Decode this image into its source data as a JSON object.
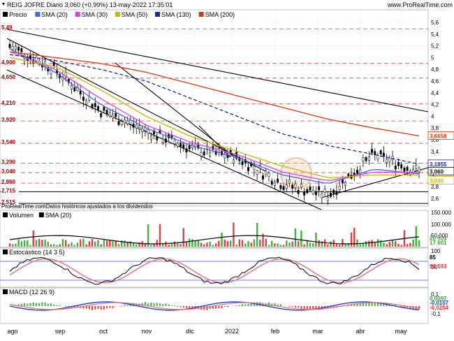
{
  "header": {
    "title": "REIG JOFRE Diario 3,060 (+0,99%) 13-may-2022 17:35:01",
    "brand": "www.ProRealTime.com"
  },
  "price_panel": {
    "legend": [
      {
        "label": "Precio",
        "color": "#000000"
      },
      {
        "label": "SMA (20)",
        "color": "#3a6fe0"
      },
      {
        "label": "SMA (30)",
        "color": "#e040e0"
      },
      {
        "label": "SMA (50)",
        "color": "#c8b800"
      },
      {
        "label": "SMA (130)",
        "color": "#1a2a90"
      },
      {
        "label": "SMA (200)",
        "color": "#d03a10"
      }
    ],
    "level_labels": [
      "5,49",
      "4,900",
      "4,650",
      "4,210",
      "3,920",
      "3,540",
      "3,200",
      "3,040",
      "2,860",
      "2,715",
      "2,515"
    ],
    "axis_ticks": [
      "5,6",
      "5,4",
      "5,2",
      "5",
      "4,8",
      "4,6",
      "4,4",
      "4,2",
      "4",
      "3,8",
      "3,6",
      "3,4",
      "3,2",
      "3",
      "2,8",
      "2,6"
    ],
    "tags": [
      {
        "text": "3,6658",
        "color": "#d03a10"
      },
      {
        "text": "3,1855",
        "color": "#1a2a90"
      },
      {
        "text": "3,060",
        "color": "#000000"
      },
      {
        "text": "3,000",
        "color": "#c8b800"
      }
    ],
    "footnote": "ProRealTime.comDatos históricos ajustados a los dividendos"
  },
  "volume_panel": {
    "legend": [
      {
        "label": "Volumen",
        "color": "#000000"
      },
      {
        "label": "SMA (20)",
        "color": "#000000"
      }
    ],
    "axis_ticks": [
      "150 000",
      "100 000",
      "50 000"
    ],
    "tags": [
      "20 631",
      "17 601"
    ]
  },
  "stoch_panel": {
    "legend": [
      {
        "label": "Estocástico (14 3 5)",
        "color": "#000000"
      }
    ],
    "axis_ticks": [
      "100",
      "50"
    ],
    "tags": [
      "85",
      "56,593"
    ]
  },
  "macd_panel": {
    "legend": [
      {
        "label": "MACD (12 26 9)",
        "color": "#000000"
      }
    ],
    "axis_ticks": [
      "0,1",
      "-0,1"
    ],
    "tags": [
      "0,0097",
      "-0,0107",
      "-0,0204"
    ]
  },
  "x_axis": [
    "ago",
    "sep",
    "oct",
    "nov",
    "dic",
    "2022",
    "feb",
    "mar",
    "abr",
    "may"
  ],
  "chart_data": {
    "type": "line",
    "title": "REIG JOFRE Diario 3,060 (+0,99%) 13-may-2022 17:35:01",
    "x": [
      "ago",
      "sep",
      "oct",
      "nov",
      "dic",
      "2022",
      "feb",
      "mar",
      "abr",
      "may"
    ],
    "ylim": [
      2.55,
      5.65
    ],
    "horizontal_levels": [
      5.49,
      4.9,
      4.65,
      4.21,
      3.92,
      3.54,
      3.2,
      3.04,
      2.86,
      2.715,
      2.515
    ],
    "series": [
      {
        "name": "Precio",
        "values": [
          5.2,
          4.8,
          4.1,
          3.75,
          3.45,
          3.3,
          2.85,
          2.65,
          3.35,
          3.06
        ]
      },
      {
        "name": "SMA (20)",
        "values": [
          5.15,
          4.75,
          4.2,
          3.8,
          3.5,
          3.3,
          3.0,
          2.85,
          3.1,
          3.02
        ]
      },
      {
        "name": "SMA (30)",
        "values": [
          5.1,
          4.8,
          4.3,
          3.85,
          3.55,
          3.35,
          3.05,
          2.9,
          3.05,
          3.04
        ]
      },
      {
        "name": "SMA (50)",
        "values": [
          5.0,
          4.85,
          4.45,
          4.0,
          3.65,
          3.4,
          3.15,
          2.95,
          3.0,
          3.0
        ]
      },
      {
        "name": "SMA (130)",
        "values": [
          5.05,
          4.95,
          4.8,
          4.6,
          4.3,
          4.0,
          3.7,
          3.5,
          3.35,
          3.1855
        ]
      },
      {
        "name": "SMA (200)",
        "values": [
          5.1,
          5.0,
          4.9,
          4.75,
          4.55,
          4.35,
          4.15,
          3.95,
          3.8,
          3.6658
        ]
      }
    ],
    "volume_sma20": [
      20631,
      17601
    ],
    "stochastic": {
      "k": 85,
      "d": 56.593
    },
    "macd": [
      0.0097,
      -0.0107,
      -0.0204
    ]
  }
}
